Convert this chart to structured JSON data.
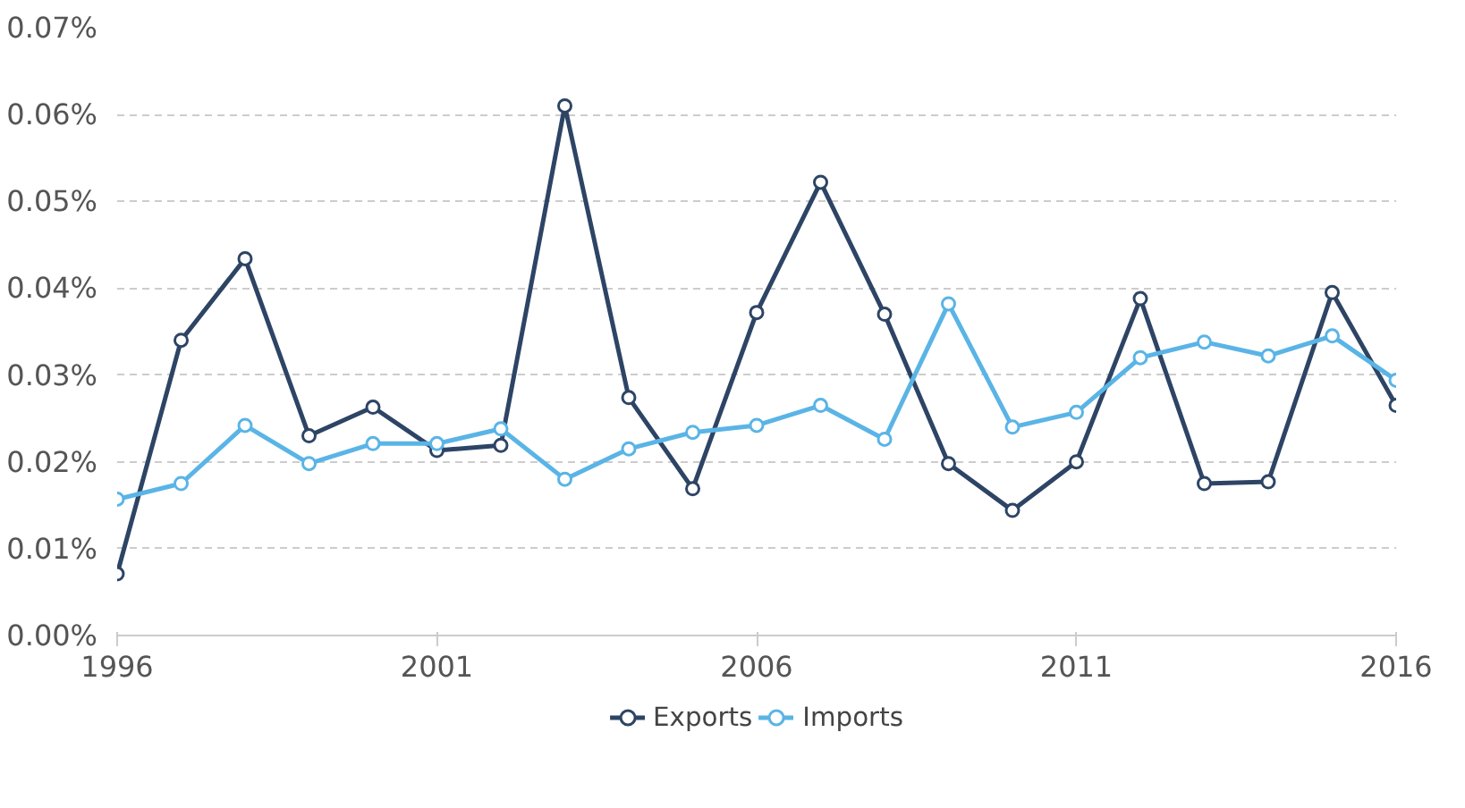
{
  "chart_data": {
    "type": "line",
    "x": [
      1996,
      1997,
      1998,
      1999,
      2000,
      2001,
      2002,
      2003,
      2004,
      2005,
      2006,
      2007,
      2008,
      2009,
      2010,
      2011,
      2012,
      2013,
      2014,
      2015,
      2016
    ],
    "series": [
      {
        "name": "Exports",
        "color": "#2d4465",
        "values": [
          0.0071,
          0.034,
          0.0434,
          0.023,
          0.0263,
          0.0213,
          0.0219,
          0.061,
          0.0274,
          0.0169,
          0.0372,
          0.0522,
          0.037,
          0.0198,
          0.0144,
          0.02,
          0.0388,
          0.0175,
          0.0177,
          0.0395,
          0.0265
        ]
      },
      {
        "name": "Imports",
        "color": "#5ab4e6",
        "values": [
          0.0157,
          0.0175,
          0.0242,
          0.0198,
          0.0221,
          0.0221,
          0.0238,
          0.018,
          0.0215,
          0.0234,
          0.0242,
          0.0265,
          0.0226,
          0.0382,
          0.024,
          0.0257,
          0.032,
          0.0338,
          0.0322,
          0.0345,
          0.0294
        ]
      }
    ],
    "xlim": [
      1996,
      2016
    ],
    "xticks": [
      1996,
      2001,
      2006,
      2011,
      2016
    ],
    "ylim": [
      0,
      0.07
    ],
    "yticks": [
      {
        "value": 0,
        "label": "0.00%"
      },
      {
        "value": 0.01,
        "label": "0.01%"
      },
      {
        "value": 0.02,
        "label": "0.02%"
      },
      {
        "value": 0.03,
        "label": "0.03%"
      },
      {
        "value": 0.04,
        "label": "0.04%"
      },
      {
        "value": 0.05,
        "label": "0.05%"
      },
      {
        "value": 0.06,
        "label": "0.06%"
      },
      {
        "value": 0.07,
        "label": "0.07%"
      }
    ],
    "grid": "y",
    "legend": "bottom",
    "marker": "circle",
    "line_style": "solid"
  }
}
